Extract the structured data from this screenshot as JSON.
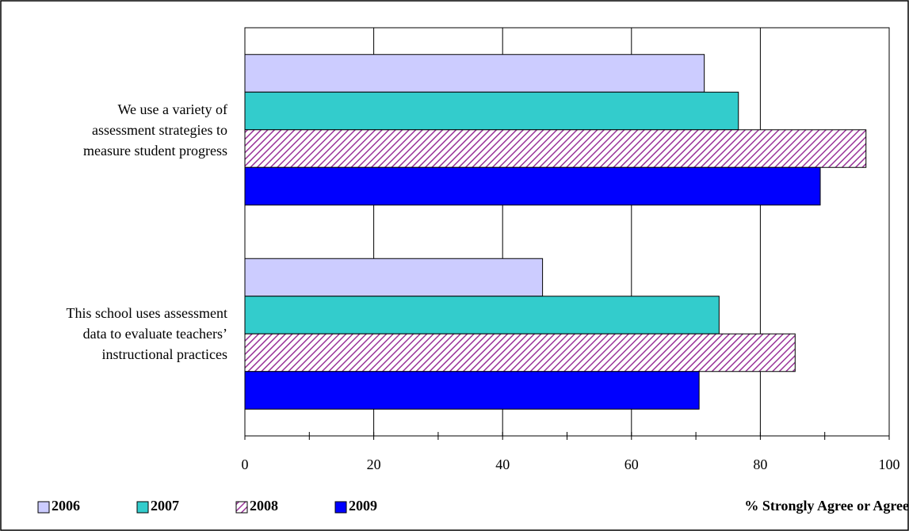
{
  "chart_data": {
    "type": "barh",
    "categories": [
      "We use a variety of\nassessment strategies to\nmeasure student progress",
      "This school uses assessment\ndata to evaluate teachers’\ninstructional practices"
    ],
    "series": [
      {
        "name": "2006",
        "color": "#ccccff",
        "values": [
          71.3,
          46.2
        ]
      },
      {
        "name": "2007",
        "color": "#33cccc",
        "values": [
          76.6,
          73.6
        ]
      },
      {
        "name": "2008",
        "color": "#993399",
        "pattern": "diagonal",
        "values": [
          96.4,
          85.4
        ]
      },
      {
        "name": "2009",
        "color": "#0000ff",
        "values": [
          89.3,
          70.5
        ]
      }
    ],
    "xlabel": "% Strongly Agree or Agree",
    "xlim": [
      0,
      100
    ],
    "xticks": [
      0,
      20,
      40,
      60,
      80,
      100
    ],
    "xminor": [
      10,
      30,
      50,
      70,
      90
    ],
    "grid": true,
    "legend": "bottom-left"
  }
}
